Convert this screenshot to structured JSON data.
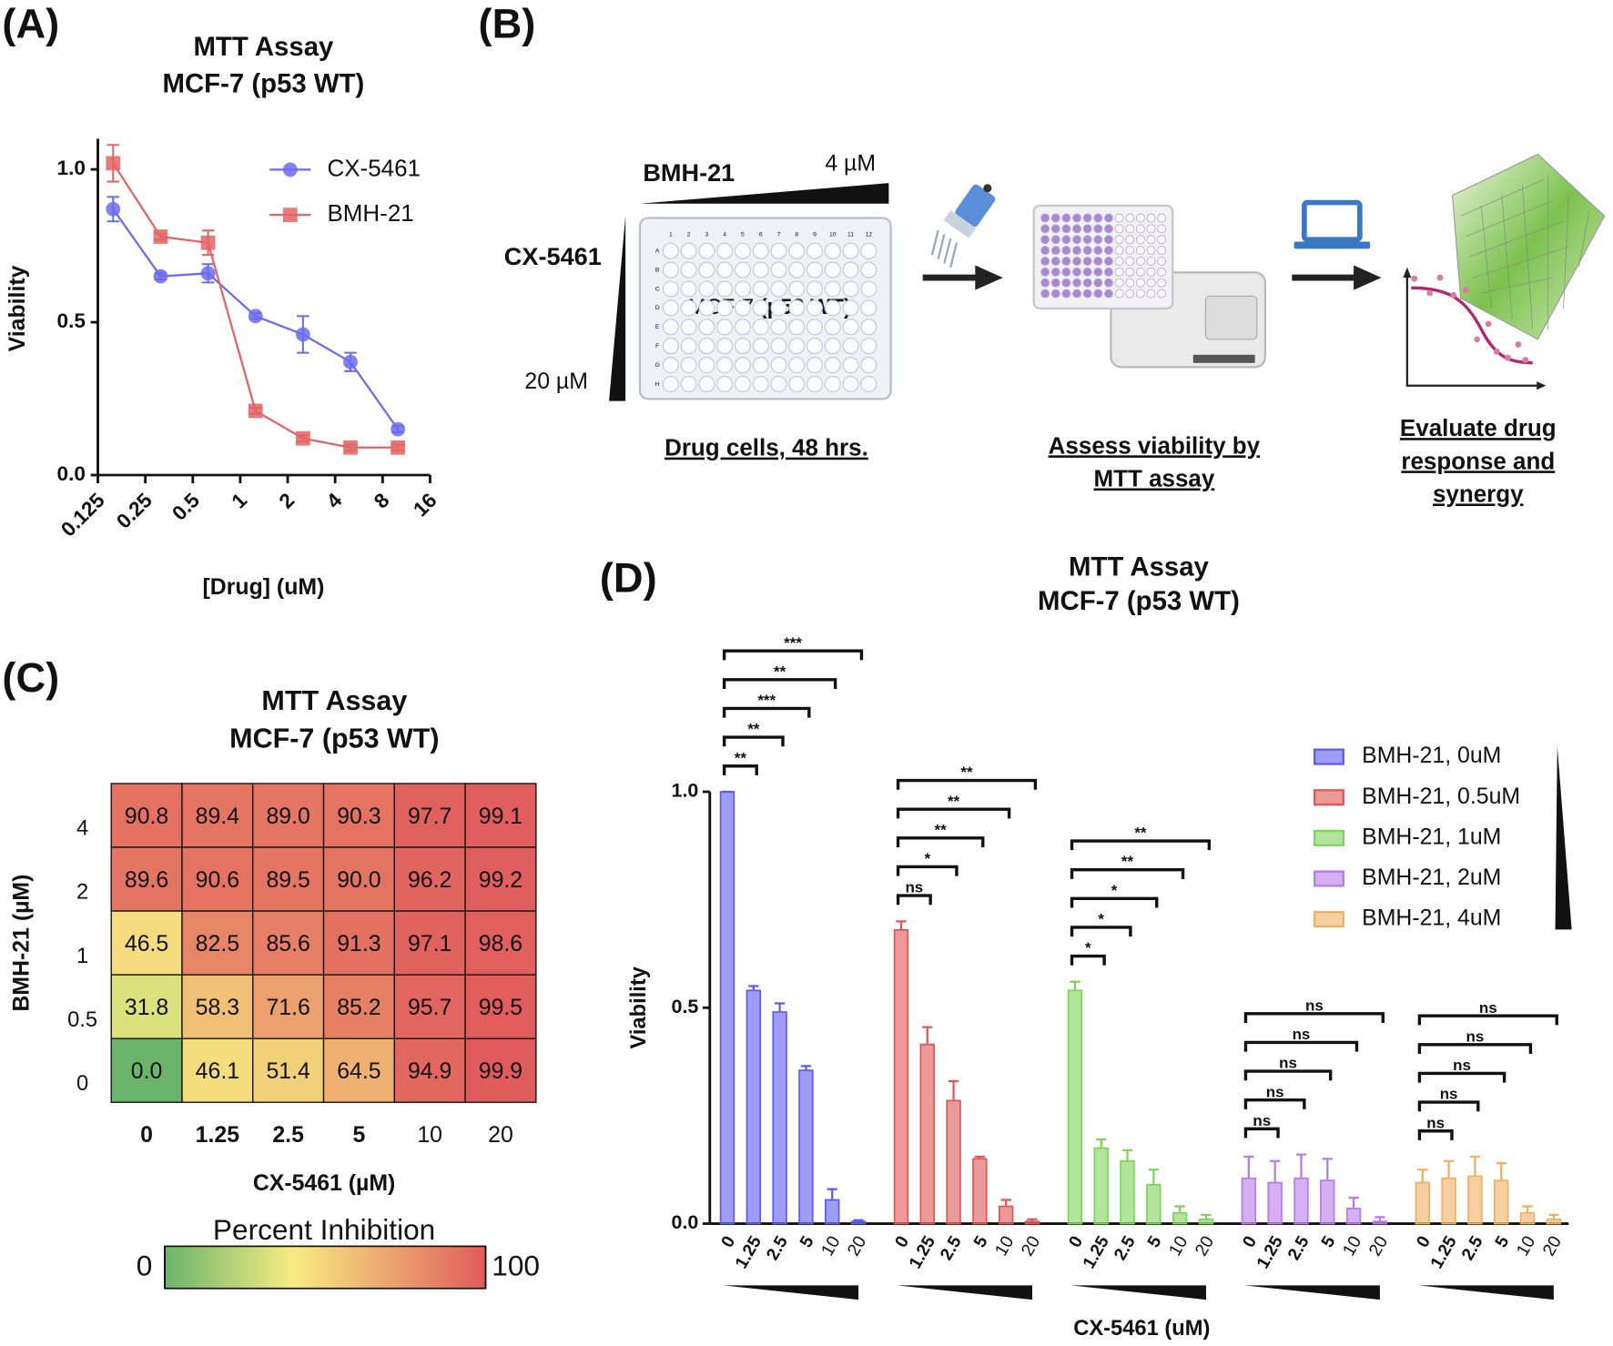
{
  "panel_labels": [
    "(A)",
    "(B)",
    "(C)",
    "(D)"
  ],
  "diagram": {
    "row_drug": "BMH-21",
    "row_max": "4 µM",
    "col_drug": "CX-5461",
    "col_max": "20 µM",
    "plate_label": [
      "MCF-7 ",
      "(p53 WT)"
    ],
    "plate_columns": [
      "1",
      "2",
      "3",
      "4",
      "5",
      "6",
      "7",
      "8",
      "9",
      "10",
      "11",
      "12"
    ],
    "plate_rows": [
      "A",
      "B",
      "C",
      "D",
      "E",
      "F",
      "G",
      "H"
    ],
    "steps": [
      [
        "Drug cells, 48 hrs."
      ],
      [
        "Assess viability by",
        "MTT assay"
      ],
      [
        "Evaluate drug",
        "response and",
        "synergy"
      ]
    ]
  },
  "chart_data": [
    {
      "type": "line",
      "title": "MTT Assay",
      "subtitle": "MCF-7 (p53 WT)",
      "x_label": "[Drug] (uM)",
      "y_label": "Viability",
      "x_scale": "log2",
      "xlim": [
        0.125,
        16
      ],
      "xticks": [
        0.125,
        0.25,
        0.5,
        1,
        2,
        4,
        8,
        16
      ],
      "ylim": [
        0,
        1.1
      ],
      "yticks": [
        {
          "value": 0,
          "label": "0.0"
        },
        {
          "value": 0.5,
          "label": "0.5"
        },
        {
          "value": 1,
          "label": "1.0"
        }
      ],
      "legend": "upper right",
      "x": [
        0.15625,
        0.3125,
        0.625,
        1.25,
        2.5,
        5,
        10
      ],
      "series": [
        {
          "name": "CX-5461",
          "color": "#6b6bf0",
          "marker": "circle",
          "values": [
            0.87,
            0.65,
            0.66,
            0.52,
            0.46,
            0.37,
            0.15
          ],
          "errors": [
            0.04,
            0.01,
            0.03,
            0.01,
            0.06,
            0.03,
            0.01
          ]
        },
        {
          "name": "BMH-21",
          "color": "#e36464",
          "marker": "square",
          "values": [
            1.02,
            0.78,
            0.76,
            0.21,
            0.12,
            0.09,
            0.09
          ],
          "errors": [
            0.06,
            0.01,
            0.04,
            0.01,
            0.01,
            0.01,
            0.01
          ]
        }
      ]
    },
    {
      "type": "heatmap",
      "title": "MTT Assay",
      "subtitle": "MCF-7 (p53 WT)",
      "x_label": "CX-5461 (µM)",
      "y_label": "BMH-21 (µM)",
      "categories": [
        "0",
        "1.25",
        "2.5",
        "5",
        "10",
        "20"
      ],
      "y_categories": [
        "4",
        "2",
        "1",
        "0.5",
        "0"
      ],
      "values": [
        [
          90.8,
          89.4,
          89.0,
          90.3,
          97.7,
          99.1
        ],
        [
          89.6,
          90.6,
          89.5,
          90.0,
          96.2,
          99.2
        ],
        [
          46.5,
          82.5,
          85.6,
          91.3,
          97.1,
          98.6
        ],
        [
          31.8,
          58.3,
          71.6,
          85.2,
          95.7,
          99.5
        ],
        [
          0.0,
          46.1,
          51.4,
          64.5,
          94.9,
          99.9
        ]
      ],
      "value_labels": [
        [
          "90.8",
          "89.4",
          "89.0",
          "90.3",
          "97.7",
          "99.1"
        ],
        [
          "89.6",
          "90.6",
          "89.5",
          "90.0",
          "96.2",
          "99.2"
        ],
        [
          "46.5",
          "82.5",
          "85.6",
          "91.3",
          "97.1",
          "98.6"
        ],
        [
          "31.8",
          "58.3",
          "71.6",
          "85.2",
          "95.7",
          "99.5"
        ],
        [
          "0.0",
          "46.1",
          "51.4",
          "64.5",
          "94.9",
          "99.9"
        ]
      ],
      "colorbar_label": "Percent Inhibition",
      "clim": [
        0,
        100
      ],
      "cticks": [
        0,
        100
      ],
      "colorscale": [
        {
          "value": 0,
          "color": "#6cb46c"
        },
        {
          "value": 40,
          "color": "#f7ec82"
        },
        {
          "value": 100,
          "color": "#e05c5c"
        }
      ]
    },
    {
      "type": "grouped_bar",
      "title": "MTT Assay",
      "subtitle": "MCF-7 (p53 WT)",
      "x_label": "CX-5461 (uM)",
      "y_label": "Viability",
      "categories": [
        "0",
        "1.25",
        "2.5",
        "5",
        "10",
        "20"
      ],
      "ylim": [
        0,
        1
      ],
      "yticks": [
        {
          "value": 0,
          "label": "0.0"
        },
        {
          "value": 0.5,
          "label": "0.5"
        },
        {
          "value": 1,
          "label": "1.0"
        }
      ],
      "legend": "upper right",
      "series": [
        {
          "name": "BMH-21, 0uM",
          "color": "#5b5bf0",
          "values": [
            1.0,
            0.54,
            0.49,
            0.355,
            0.055,
            0.005
          ],
          "errors": [
            0,
            0.01,
            0.02,
            0.01,
            0.025,
            0.003
          ],
          "significance": [
            "**",
            "**",
            "***",
            "**",
            "***"
          ]
        },
        {
          "name": "BMH-21, 0.5uM",
          "color": "#e05555",
          "values": [
            0.68,
            0.415,
            0.285,
            0.15,
            0.04,
            0.005
          ],
          "errors": [
            0.02,
            0.04,
            0.045,
            0.005,
            0.015,
            0.005
          ],
          "significance": [
            "ns",
            "*",
            "**",
            "**",
            "**"
          ]
        },
        {
          "name": "BMH-21, 1uM",
          "color": "#7ed35a",
          "values": [
            0.54,
            0.175,
            0.145,
            0.09,
            0.025,
            0.01
          ],
          "errors": [
            0.02,
            0.02,
            0.025,
            0.035,
            0.015,
            0.01
          ],
          "significance": [
            "*",
            "*",
            "*",
            "**",
            "**"
          ]
        },
        {
          "name": "BMH-21, 2uM",
          "color": "#b77ae8",
          "values": [
            0.105,
            0.095,
            0.105,
            0.1,
            0.035,
            0.005
          ],
          "errors": [
            0.05,
            0.05,
            0.055,
            0.05,
            0.025,
            0.01
          ],
          "significance": [
            "ns",
            "ns",
            "ns",
            "ns",
            "ns"
          ]
        },
        {
          "name": "BMH-21, 4uM",
          "color": "#f0b060",
          "values": [
            0.095,
            0.105,
            0.11,
            0.1,
            0.025,
            0.01
          ],
          "errors": [
            0.03,
            0.04,
            0.045,
            0.04,
            0.015,
            0.01
          ],
          "significance": [
            "ns",
            "ns",
            "ns",
            "ns",
            "ns"
          ]
        }
      ]
    }
  ]
}
